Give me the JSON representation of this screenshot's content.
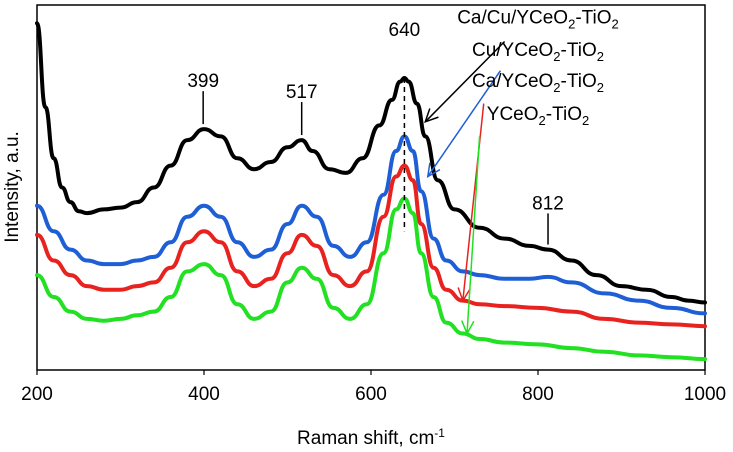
{
  "chart_data": {
    "type": "line",
    "title": "",
    "xlabel": "Raman shift, cm",
    "xlabel_sup": "-1",
    "ylabel": "Intensity, a.u.",
    "xlim": [
      200,
      1000
    ],
    "ylim": [
      0,
      1
    ],
    "x_ticks": [
      "200",
      "400",
      "600",
      "800",
      "1000"
    ],
    "y_ticks": [],
    "grid": false,
    "legend": "annotations on right with arrows",
    "series": [
      {
        "name": "Ca/Cu/YCeO2-TiO2",
        "label_parts": [
          "Ca/Cu/YCeO",
          "2",
          "-TiO",
          "2"
        ],
        "color": "#000000",
        "points": [
          [
            200,
            0.95
          ],
          [
            210,
            0.72
          ],
          [
            220,
            0.58
          ],
          [
            230,
            0.5
          ],
          [
            240,
            0.46
          ],
          [
            250,
            0.435
          ],
          [
            260,
            0.43
          ],
          [
            280,
            0.44
          ],
          [
            300,
            0.445
          ],
          [
            320,
            0.46
          ],
          [
            340,
            0.5
          ],
          [
            360,
            0.56
          ],
          [
            380,
            0.63
          ],
          [
            400,
            0.66
          ],
          [
            420,
            0.64
          ],
          [
            440,
            0.58
          ],
          [
            460,
            0.55
          ],
          [
            480,
            0.57
          ],
          [
            500,
            0.61
          ],
          [
            517,
            0.63
          ],
          [
            530,
            0.6
          ],
          [
            550,
            0.55
          ],
          [
            570,
            0.54
          ],
          [
            590,
            0.58
          ],
          [
            610,
            0.67
          ],
          [
            625,
            0.74
          ],
          [
            635,
            0.79
          ],
          [
            640,
            0.8
          ],
          [
            645,
            0.79
          ],
          [
            655,
            0.73
          ],
          [
            665,
            0.64
          ],
          [
            680,
            0.52
          ],
          [
            700,
            0.44
          ],
          [
            730,
            0.39
          ],
          [
            760,
            0.36
          ],
          [
            790,
            0.34
          ],
          [
            812,
            0.33
          ],
          [
            840,
            0.3
          ],
          [
            870,
            0.26
          ],
          [
            900,
            0.23
          ],
          [
            930,
            0.22
          ],
          [
            960,
            0.2
          ],
          [
            980,
            0.19
          ],
          [
            1000,
            0.185
          ]
        ]
      },
      {
        "name": "Cu/YCeO2-TiO2",
        "label_parts": [
          "Cu/YCeO",
          "2",
          "-TiO",
          "2"
        ],
        "color": "#1f5fd6",
        "points": [
          [
            200,
            0.45
          ],
          [
            220,
            0.38
          ],
          [
            240,
            0.33
          ],
          [
            260,
            0.3
          ],
          [
            280,
            0.29
          ],
          [
            300,
            0.29
          ],
          [
            320,
            0.3
          ],
          [
            340,
            0.31
          ],
          [
            360,
            0.35
          ],
          [
            380,
            0.42
          ],
          [
            400,
            0.45
          ],
          [
            420,
            0.42
          ],
          [
            440,
            0.35
          ],
          [
            460,
            0.31
          ],
          [
            480,
            0.33
          ],
          [
            500,
            0.4
          ],
          [
            517,
            0.45
          ],
          [
            535,
            0.42
          ],
          [
            555,
            0.34
          ],
          [
            575,
            0.31
          ],
          [
            595,
            0.35
          ],
          [
            615,
            0.48
          ],
          [
            630,
            0.6
          ],
          [
            640,
            0.64
          ],
          [
            650,
            0.6
          ],
          [
            660,
            0.49
          ],
          [
            675,
            0.36
          ],
          [
            690,
            0.3
          ],
          [
            710,
            0.27
          ],
          [
            730,
            0.26
          ],
          [
            760,
            0.25
          ],
          [
            790,
            0.25
          ],
          [
            812,
            0.255
          ],
          [
            840,
            0.24
          ],
          [
            880,
            0.21
          ],
          [
            920,
            0.19
          ],
          [
            960,
            0.17
          ],
          [
            1000,
            0.155
          ]
        ]
      },
      {
        "name": "Ca/YCeO2-TiO2",
        "label_parts": [
          "Ca/YCeO",
          "2",
          "-TiO",
          "2"
        ],
        "color": "#e8231f",
        "points": [
          [
            200,
            0.37
          ],
          [
            220,
            0.3
          ],
          [
            240,
            0.26
          ],
          [
            260,
            0.23
          ],
          [
            280,
            0.22
          ],
          [
            300,
            0.22
          ],
          [
            320,
            0.23
          ],
          [
            340,
            0.24
          ],
          [
            360,
            0.28
          ],
          [
            380,
            0.35
          ],
          [
            400,
            0.38
          ],
          [
            420,
            0.35
          ],
          [
            440,
            0.27
          ],
          [
            460,
            0.23
          ],
          [
            480,
            0.25
          ],
          [
            500,
            0.32
          ],
          [
            517,
            0.37
          ],
          [
            535,
            0.34
          ],
          [
            555,
            0.26
          ],
          [
            575,
            0.23
          ],
          [
            595,
            0.27
          ],
          [
            615,
            0.42
          ],
          [
            630,
            0.53
          ],
          [
            640,
            0.56
          ],
          [
            650,
            0.52
          ],
          [
            660,
            0.4
          ],
          [
            675,
            0.28
          ],
          [
            690,
            0.22
          ],
          [
            710,
            0.19
          ],
          [
            730,
            0.18
          ],
          [
            760,
            0.175
          ],
          [
            800,
            0.17
          ],
          [
            840,
            0.16
          ],
          [
            880,
            0.14
          ],
          [
            920,
            0.13
          ],
          [
            960,
            0.125
          ],
          [
            1000,
            0.12
          ]
        ]
      },
      {
        "name": "YCeO2-TiO2",
        "label_parts": [
          "YCeO",
          "2",
          "-TiO",
          "2"
        ],
        "color": "#22e022",
        "points": [
          [
            200,
            0.26
          ],
          [
            220,
            0.2
          ],
          [
            240,
            0.16
          ],
          [
            260,
            0.14
          ],
          [
            280,
            0.135
          ],
          [
            300,
            0.14
          ],
          [
            320,
            0.15
          ],
          [
            340,
            0.16
          ],
          [
            360,
            0.2
          ],
          [
            380,
            0.27
          ],
          [
            400,
            0.29
          ],
          [
            420,
            0.26
          ],
          [
            440,
            0.18
          ],
          [
            460,
            0.14
          ],
          [
            480,
            0.16
          ],
          [
            500,
            0.24
          ],
          [
            517,
            0.28
          ],
          [
            535,
            0.25
          ],
          [
            555,
            0.17
          ],
          [
            575,
            0.14
          ],
          [
            595,
            0.18
          ],
          [
            615,
            0.32
          ],
          [
            630,
            0.44
          ],
          [
            640,
            0.47
          ],
          [
            650,
            0.43
          ],
          [
            660,
            0.32
          ],
          [
            675,
            0.2
          ],
          [
            690,
            0.13
          ],
          [
            710,
            0.1
          ],
          [
            730,
            0.085
          ],
          [
            760,
            0.075
          ],
          [
            800,
            0.07
          ],
          [
            840,
            0.06
          ],
          [
            880,
            0.05
          ],
          [
            920,
            0.04
          ],
          [
            960,
            0.035
          ],
          [
            1000,
            0.03
          ]
        ]
      }
    ],
    "peak_labels": [
      {
        "label": "399",
        "x": 399,
        "attach_y": 0.66,
        "text_y": 0.775
      },
      {
        "label": "517",
        "x": 517,
        "attach_y": 0.63,
        "text_y": 0.745
      },
      {
        "label": "640",
        "x": 640,
        "attach_y": 0.8,
        "text_y": 0.915
      },
      {
        "label": "812",
        "x": 812,
        "attach_y": 0.33,
        "text_y": 0.44
      }
    ],
    "dashed_line": {
      "x": 640,
      "y_top": 0.8,
      "y_bottom": 0.38
    },
    "legend_annotations": [
      {
        "series": 0,
        "label_x": 800,
        "label_y": 0.95,
        "arrow_from": [
          760,
          0.9
        ],
        "arrow_to": [
          665,
          0.68
        ]
      },
      {
        "series": 1,
        "label_x": 800,
        "label_y": 0.86,
        "arrow_from": [
          755,
          0.82
        ],
        "arrow_to": [
          668,
          0.53
        ]
      },
      {
        "series": 2,
        "label_x": 800,
        "label_y": 0.775,
        "arrow_from": [
          735,
          0.73
        ],
        "arrow_to": [
          710,
          0.19
        ]
      },
      {
        "series": 3,
        "label_x": 800,
        "label_y": 0.685,
        "arrow_from": [
          730,
          0.64
        ],
        "arrow_to": [
          715,
          0.1
        ]
      }
    ]
  }
}
